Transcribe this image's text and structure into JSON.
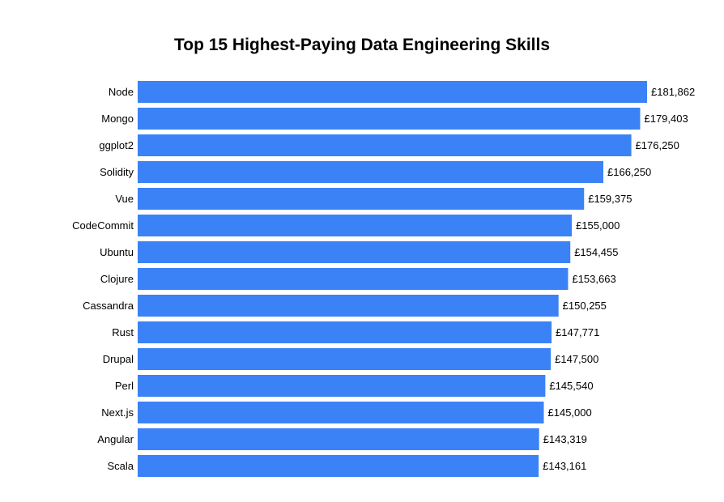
{
  "chart_data": {
    "type": "bar",
    "orientation": "horizontal",
    "title": "Top 15 Highest-Paying Data Engineering Skills",
    "xlabel": "",
    "ylabel": "",
    "currency_symbol": "£",
    "categories": [
      "Node",
      "Mongo",
      "ggplot2",
      "Solidity",
      "Vue",
      "CodeCommit",
      "Ubuntu",
      "Clojure",
      "Cassandra",
      "Rust",
      "Drupal",
      "Perl",
      "Next.js",
      "Angular",
      "Scala"
    ],
    "values": [
      181862,
      179403,
      176250,
      166250,
      159375,
      155000,
      154455,
      153663,
      150255,
      147771,
      147500,
      145540,
      145000,
      143319,
      143161
    ],
    "value_labels": [
      "£181,862",
      "£179,403",
      "£176,250",
      "£166,250",
      "£159,375",
      "£155,000",
      "£154,455",
      "£153,663",
      "£150,255",
      "£147,771",
      "£147,500",
      "£145,540",
      "£145,000",
      "£143,319",
      "£143,161"
    ],
    "xlim": [
      0,
      181862
    ],
    "grid": false,
    "legend": "none",
    "bar_color": "#3b82f6"
  }
}
